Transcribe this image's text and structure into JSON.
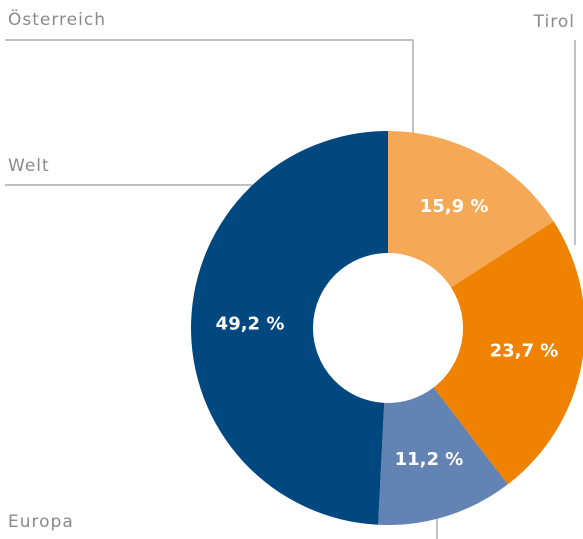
{
  "chart_data": {
    "type": "donut",
    "categories": [
      "Österreich",
      "Tirol",
      "Welt",
      "Europa"
    ],
    "values": [
      15.9,
      23.7,
      11.2,
      49.2
    ],
    "value_labels": [
      "15,9 %",
      "23,7 %",
      "11,2 %",
      "49,2 %"
    ],
    "colors": [
      "#f5a856",
      "#ef8200",
      "#6283b3",
      "#00487f"
    ]
  }
}
